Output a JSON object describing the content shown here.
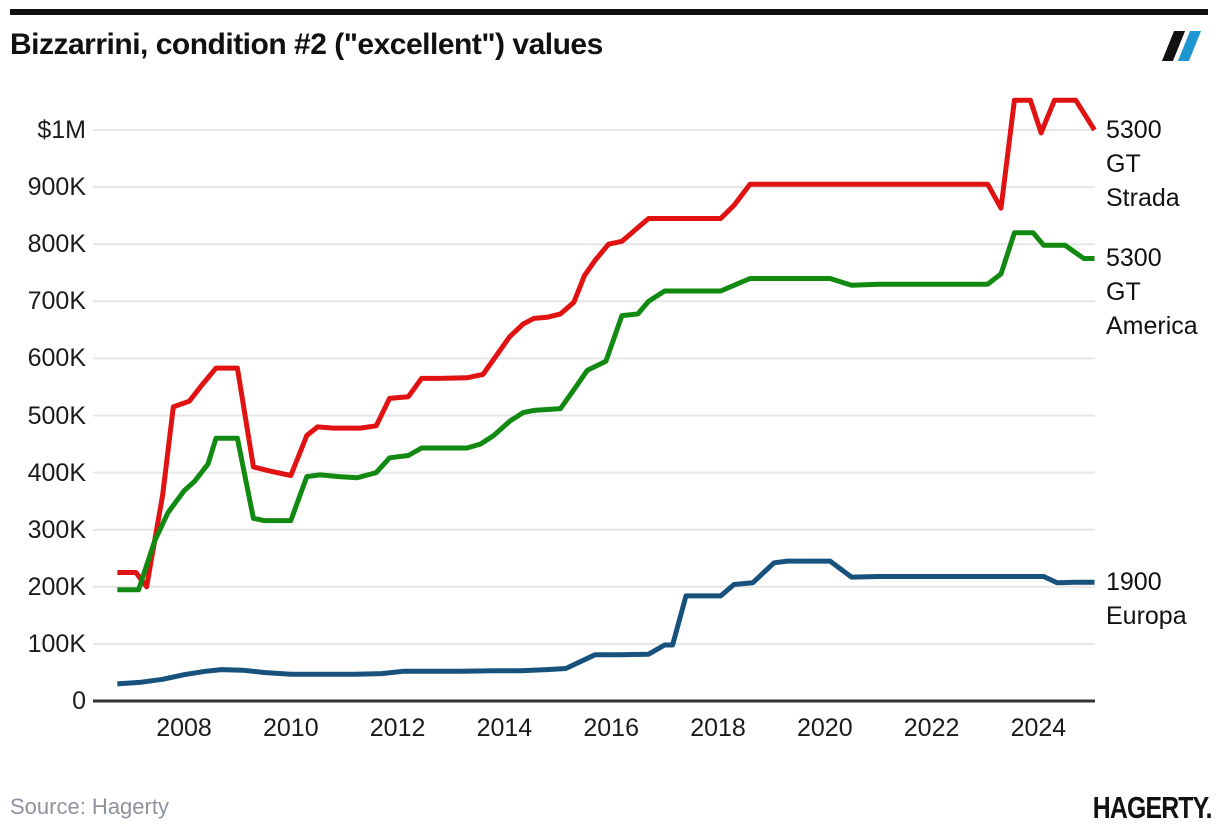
{
  "header": {
    "title": "Bizzarrini, condition #2 (\"excellent\") values"
  },
  "footer": {
    "source": "Source: Hagerty",
    "brand": "HAGERTY."
  },
  "colors": {
    "strada_red": "#e01212",
    "america_green": "#128a12",
    "europa_blue": "#17527d",
    "logo_blue": "#1e96d2",
    "grid": "#e6e6e6",
    "axis": "#333333",
    "tick_text": "#1b1b1b",
    "muted_text": "#8e939e"
  },
  "chart_data": {
    "type": "line",
    "title": "Bizzarrini, condition #2 (\"excellent\") values",
    "xlabel": "",
    "ylabel": "",
    "values_unit": "USD thousands",
    "x_range": [
      2006.6,
      2025.2
    ],
    "ylim_thousands": [
      0,
      1100
    ],
    "grid": "horizontal-only",
    "legend_position": "right-of-line-ends",
    "yticks": [
      {
        "label": "$1M",
        "value": 1000
      },
      {
        "label": "900K",
        "value": 900
      },
      {
        "label": "800K",
        "value": 800
      },
      {
        "label": "700K",
        "value": 700
      },
      {
        "label": "600K",
        "value": 600
      },
      {
        "label": "500K",
        "value": 500
      },
      {
        "label": "400K",
        "value": 400
      },
      {
        "label": "300K",
        "value": 300
      },
      {
        "label": "200K",
        "value": 200
      },
      {
        "label": "100K",
        "value": 100
      },
      {
        "label": "0",
        "value": 0
      }
    ],
    "xticks": [
      2008,
      2010,
      2012,
      2014,
      2016,
      2018,
      2020,
      2022,
      2024
    ],
    "series": [
      {
        "id": "5300-gt-strada",
        "name": "5300 GT Strada",
        "label_lines": [
          "5300",
          "GT",
          "Strada"
        ],
        "color": "#e01212",
        "points": [
          [
            2006.75,
            225
          ],
          [
            2007.1,
            225
          ],
          [
            2007.3,
            200
          ],
          [
            2007.6,
            360
          ],
          [
            2007.8,
            515
          ],
          [
            2008.1,
            525
          ],
          [
            2008.35,
            555
          ],
          [
            2008.6,
            583
          ],
          [
            2009.0,
            583
          ],
          [
            2009.3,
            410
          ],
          [
            2009.6,
            403
          ],
          [
            2010.0,
            395
          ],
          [
            2010.3,
            465
          ],
          [
            2010.5,
            480
          ],
          [
            2010.8,
            478
          ],
          [
            2011.3,
            478
          ],
          [
            2011.6,
            482
          ],
          [
            2011.85,
            530
          ],
          [
            2012.2,
            533
          ],
          [
            2012.45,
            565
          ],
          [
            2012.8,
            565
          ],
          [
            2013.3,
            566
          ],
          [
            2013.6,
            572
          ],
          [
            2013.85,
            605
          ],
          [
            2014.1,
            638
          ],
          [
            2014.35,
            660
          ],
          [
            2014.55,
            670
          ],
          [
            2014.8,
            672
          ],
          [
            2015.05,
            678
          ],
          [
            2015.3,
            698
          ],
          [
            2015.5,
            745
          ],
          [
            2015.7,
            772
          ],
          [
            2015.95,
            800
          ],
          [
            2016.2,
            805
          ],
          [
            2016.45,
            825
          ],
          [
            2016.7,
            845
          ],
          [
            2018.05,
            845
          ],
          [
            2018.3,
            868
          ],
          [
            2018.6,
            905
          ],
          [
            2019.0,
            905
          ],
          [
            2023.05,
            905
          ],
          [
            2023.3,
            863
          ],
          [
            2023.55,
            1052
          ],
          [
            2023.85,
            1052
          ],
          [
            2024.05,
            995
          ],
          [
            2024.3,
            1052
          ],
          [
            2024.7,
            1052
          ],
          [
            2025.05,
            1000
          ]
        ]
      },
      {
        "id": "5300-gt-america",
        "name": "5300 GT America",
        "label_lines": [
          "5300",
          "GT",
          "America"
        ],
        "color": "#128a12",
        "points": [
          [
            2006.75,
            195
          ],
          [
            2007.15,
            195
          ],
          [
            2007.45,
            280
          ],
          [
            2007.7,
            330
          ],
          [
            2008.0,
            368
          ],
          [
            2008.2,
            385
          ],
          [
            2008.45,
            415
          ],
          [
            2008.6,
            460
          ],
          [
            2009.0,
            460
          ],
          [
            2009.3,
            320
          ],
          [
            2009.5,
            316
          ],
          [
            2010.0,
            316
          ],
          [
            2010.3,
            393
          ],
          [
            2010.55,
            396
          ],
          [
            2010.9,
            393
          ],
          [
            2011.25,
            391
          ],
          [
            2011.6,
            400
          ],
          [
            2011.85,
            426
          ],
          [
            2012.2,
            430
          ],
          [
            2012.45,
            443
          ],
          [
            2013.3,
            443
          ],
          [
            2013.55,
            450
          ],
          [
            2013.8,
            465
          ],
          [
            2014.1,
            490
          ],
          [
            2014.35,
            505
          ],
          [
            2014.55,
            509
          ],
          [
            2015.05,
            512
          ],
          [
            2015.3,
            545
          ],
          [
            2015.55,
            579
          ],
          [
            2015.9,
            595
          ],
          [
            2016.2,
            675
          ],
          [
            2016.5,
            678
          ],
          [
            2016.7,
            700
          ],
          [
            2017.0,
            718
          ],
          [
            2018.05,
            718
          ],
          [
            2018.3,
            728
          ],
          [
            2018.6,
            740
          ],
          [
            2020.1,
            740
          ],
          [
            2020.5,
            728
          ],
          [
            2021.0,
            730
          ],
          [
            2023.05,
            730
          ],
          [
            2023.3,
            748
          ],
          [
            2023.55,
            820
          ],
          [
            2023.9,
            820
          ],
          [
            2024.1,
            798
          ],
          [
            2024.5,
            798
          ],
          [
            2024.85,
            775
          ],
          [
            2025.05,
            775
          ]
        ]
      },
      {
        "id": "1900-europa",
        "name": "1900 Europa",
        "label_lines": [
          "1900",
          "Europa"
        ],
        "color": "#17527d",
        "points": [
          [
            2006.75,
            30
          ],
          [
            2007.2,
            33
          ],
          [
            2007.6,
            38
          ],
          [
            2008.0,
            46
          ],
          [
            2008.4,
            52
          ],
          [
            2008.7,
            55
          ],
          [
            2009.1,
            54
          ],
          [
            2009.5,
            50
          ],
          [
            2010.0,
            47
          ],
          [
            2010.6,
            47
          ],
          [
            2011.2,
            47
          ],
          [
            2011.7,
            48
          ],
          [
            2012.1,
            52
          ],
          [
            2013.2,
            52
          ],
          [
            2013.8,
            53
          ],
          [
            2014.3,
            53
          ],
          [
            2014.8,
            55
          ],
          [
            2015.15,
            57
          ],
          [
            2015.7,
            81
          ],
          [
            2016.2,
            81
          ],
          [
            2016.7,
            82
          ],
          [
            2017.0,
            98
          ],
          [
            2017.15,
            98
          ],
          [
            2017.4,
            184
          ],
          [
            2018.05,
            184
          ],
          [
            2018.3,
            204
          ],
          [
            2018.65,
            207
          ],
          [
            2019.05,
            242
          ],
          [
            2019.3,
            245
          ],
          [
            2020.1,
            245
          ],
          [
            2020.5,
            217
          ],
          [
            2021.0,
            218
          ],
          [
            2023.0,
            218
          ],
          [
            2024.1,
            218
          ],
          [
            2024.35,
            207
          ],
          [
            2024.7,
            208
          ],
          [
            2025.05,
            208
          ]
        ]
      }
    ]
  }
}
